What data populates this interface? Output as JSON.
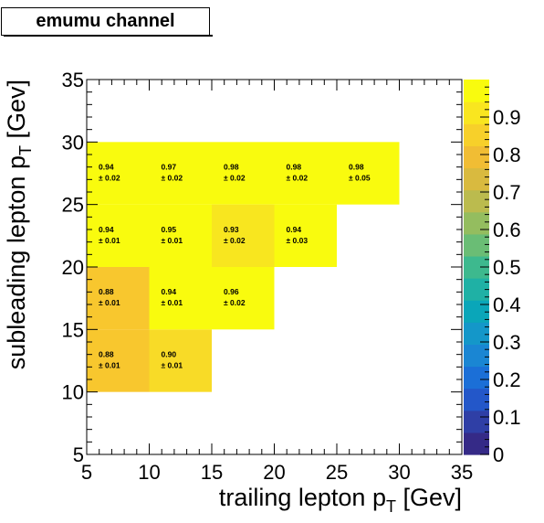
{
  "title": "emumu channel",
  "chart_data": {
    "type": "heatmap",
    "xlabel": "trailing lepton p",
    "xlabel_sub": "T",
    "xlabel_unit": "[Gev]",
    "ylabel": "subleading lepton p",
    "ylabel_sub": "T",
    "ylabel_unit": "[Gev]",
    "xlim": [
      5,
      35
    ],
    "ylim": [
      5,
      35
    ],
    "x_ticks": [
      5,
      10,
      15,
      20,
      25,
      30,
      35
    ],
    "y_ticks": [
      5,
      10,
      15,
      20,
      25,
      30,
      35
    ],
    "x_tick_labels": [
      "5",
      "10",
      "15",
      "20",
      "25",
      "30",
      "35"
    ],
    "y_tick_labels": [
      "5",
      "10",
      "15",
      "20",
      "25",
      "30",
      "35"
    ],
    "zlim": [
      0,
      1
    ],
    "z_ticks": [
      0,
      0.1,
      0.2,
      0.3,
      0.4,
      0.5,
      0.6,
      0.7,
      0.8,
      0.9
    ],
    "z_tick_labels": [
      "0",
      "0.1",
      "0.2",
      "0.3",
      "0.4",
      "0.5",
      "0.6",
      "0.7",
      "0.8",
      "0.9"
    ],
    "colorbar_colors": [
      "#352a87",
      "#2f3fa6",
      "#2357c9",
      "#1b6fd7",
      "#1a86d3",
      "#1497c9",
      "#0aa6b9",
      "#1fb1a5",
      "#3db98e",
      "#6abd75",
      "#94bd5f",
      "#bbbb4e",
      "#d9ba3f",
      "#f1bd34",
      "#f7d02a",
      "#f9e61f",
      "#f9fb0e"
    ],
    "cells": [
      {
        "x": [
          5,
          10
        ],
        "y": [
          10,
          15
        ],
        "value": "0.88",
        "error": "± 0.01",
        "color": "#f8c72e"
      },
      {
        "x": [
          10,
          15
        ],
        "y": [
          10,
          15
        ],
        "value": "0.90",
        "error": "± 0.01",
        "color": "#f8db27"
      },
      {
        "x": [
          5,
          10
        ],
        "y": [
          15,
          20
        ],
        "value": "0.88",
        "error": "± 0.01",
        "color": "#f8c72e"
      },
      {
        "x": [
          10,
          15
        ],
        "y": [
          15,
          20
        ],
        "value": "0.94",
        "error": "± 0.01",
        "color": "#f9fb0e"
      },
      {
        "x": [
          15,
          20
        ],
        "y": [
          15,
          20
        ],
        "value": "0.96",
        "error": "± 0.02",
        "color": "#f9fb0e"
      },
      {
        "x": [
          5,
          10
        ],
        "y": [
          20,
          25
        ],
        "value": "0.94",
        "error": "± 0.01",
        "color": "#f9fb0e"
      },
      {
        "x": [
          10,
          15
        ],
        "y": [
          20,
          25
        ],
        "value": "0.95",
        "error": "± 0.01",
        "color": "#f9fb0e"
      },
      {
        "x": [
          15,
          20
        ],
        "y": [
          20,
          25
        ],
        "value": "0.93",
        "error": "± 0.02",
        "color": "#f8e61f"
      },
      {
        "x": [
          20,
          25
        ],
        "y": [
          20,
          25
        ],
        "value": "0.94",
        "error": "± 0.03",
        "color": "#f9fb0e"
      },
      {
        "x": [
          5,
          10
        ],
        "y": [
          25,
          30
        ],
        "value": "0.94",
        "error": "± 0.02",
        "color": "#f9fb0e"
      },
      {
        "x": [
          10,
          15
        ],
        "y": [
          25,
          30
        ],
        "value": "0.97",
        "error": "± 0.02",
        "color": "#f9fb0e"
      },
      {
        "x": [
          15,
          20
        ],
        "y": [
          25,
          30
        ],
        "value": "0.98",
        "error": "± 0.02",
        "color": "#f9fb0e"
      },
      {
        "x": [
          20,
          25
        ],
        "y": [
          25,
          30
        ],
        "value": "0.98",
        "error": "± 0.02",
        "color": "#f9fb0e"
      },
      {
        "x": [
          25,
          30
        ],
        "y": [
          25,
          30
        ],
        "value": "0.98",
        "error": "± 0.05",
        "color": "#f9fb0e"
      }
    ]
  }
}
